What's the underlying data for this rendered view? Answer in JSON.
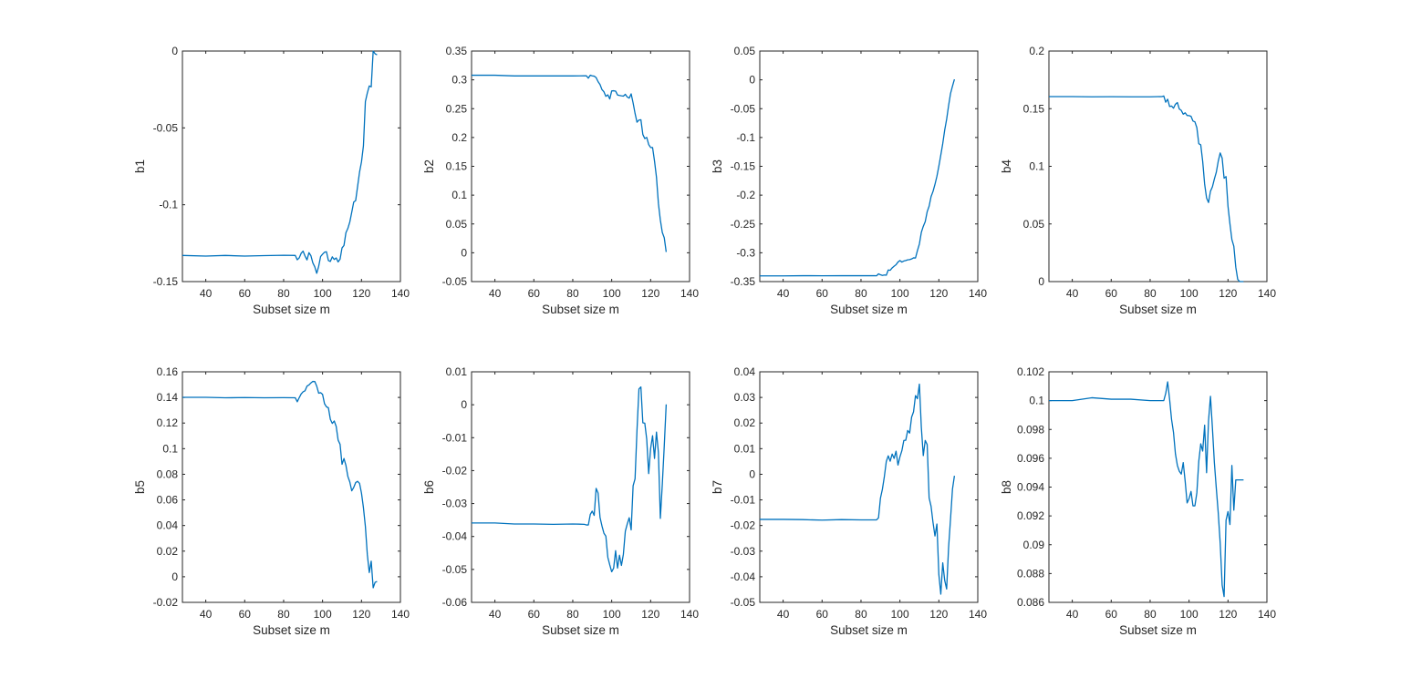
{
  "chart_data": [
    {
      "type": "line",
      "xlabel": "Subset size m",
      "ylabel": "b1",
      "xlim": [
        28,
        140
      ],
      "ylim": [
        -0.15,
        0
      ],
      "xticks": [
        "40",
        "60",
        "80",
        "100",
        "120",
        "140"
      ],
      "yticks": [
        "-0.15",
        "-0.1",
        "-0.05",
        "0"
      ],
      "series": [
        {
          "color": "#0072BD",
          "x": [
            28,
            40,
            50,
            60,
            70,
            80,
            86,
            87,
            88,
            89,
            90,
            91,
            92,
            93,
            94,
            95,
            96,
            97,
            98,
            99,
            100,
            101,
            102,
            103,
            104,
            105,
            106,
            107,
            108,
            109,
            110,
            111,
            112,
            113,
            114,
            115,
            116,
            117,
            118,
            119,
            120,
            121,
            122,
            123,
            124,
            125,
            126,
            127,
            128
          ],
          "y": [
            -0.133,
            -0.1334,
            -0.133,
            -0.1334,
            -0.1331,
            -0.1329,
            -0.133,
            -0.1358,
            -0.1346,
            -0.1316,
            -0.1302,
            -0.1334,
            -0.1359,
            -0.1312,
            -0.1331,
            -0.1378,
            -0.1404,
            -0.1446,
            -0.1401,
            -0.1337,
            -0.1322,
            -0.1309,
            -0.1306,
            -0.1363,
            -0.1369,
            -0.1339,
            -0.1356,
            -0.1346,
            -0.1372,
            -0.1354,
            -0.1281,
            -0.1265,
            -0.1182,
            -0.1154,
            -0.1112,
            -0.1049,
            -0.0983,
            -0.0973,
            -0.0881,
            -0.0788,
            -0.0721,
            -0.0616,
            -0.0329,
            -0.0273,
            -0.0227,
            -0.0233,
            -0.0001,
            -0.0018,
            -0.0025
          ]
        }
      ]
    },
    {
      "type": "line",
      "xlabel": "Subset size m",
      "ylabel": "b2",
      "xlim": [
        28,
        140
      ],
      "ylim": [
        -0.05,
        0.35
      ],
      "xticks": [
        "40",
        "60",
        "80",
        "100",
        "120",
        "140"
      ],
      "yticks": [
        "-0.05",
        "0",
        "0.05",
        "0.1",
        "0.15",
        "0.2",
        "0.25",
        "0.3",
        "0.35"
      ],
      "series": [
        {
          "color": "#0072BD",
          "x": [
            28,
            40,
            50,
            60,
            70,
            80,
            86,
            87,
            88,
            89,
            90,
            91,
            92,
            93,
            94,
            95,
            96,
            97,
            98,
            99,
            100,
            101,
            102,
            103,
            104,
            105,
            106,
            107,
            108,
            109,
            110,
            111,
            112,
            113,
            114,
            115,
            116,
            117,
            118,
            119,
            120,
            121,
            122,
            123,
            124,
            125,
            126,
            127,
            128
          ],
          "y": [
            0.308,
            0.308,
            0.3068,
            0.3068,
            0.3068,
            0.3068,
            0.307,
            0.307,
            0.3029,
            0.3081,
            0.3069,
            0.3064,
            0.3039,
            0.2968,
            0.2919,
            0.2831,
            0.2793,
            0.2714,
            0.2741,
            0.2669,
            0.2807,
            0.2811,
            0.2805,
            0.2738,
            0.2729,
            0.2723,
            0.2718,
            0.2749,
            0.2702,
            0.2683,
            0.2757,
            0.2599,
            0.2418,
            0.2265,
            0.2303,
            0.2308,
            0.2052,
            0.1981,
            0.2002,
            0.1878,
            0.1827,
            0.1825,
            0.1591,
            0.1311,
            0.0854,
            0.0567,
            0.0352,
            0.0261,
            0.0014
          ]
        }
      ]
    },
    {
      "type": "line",
      "xlabel": "Subset size m",
      "ylabel": "b3",
      "xlim": [
        28,
        140
      ],
      "ylim": [
        -0.35,
        0.05
      ],
      "xticks": [
        "40",
        "60",
        "80",
        "100",
        "120",
        "140"
      ],
      "yticks": [
        "-0.35",
        "-0.3",
        "-0.25",
        "-0.2",
        "-0.15",
        "-0.1",
        "-0.05",
        "0",
        "0.05"
      ],
      "series": [
        {
          "color": "#0072BD",
          "x": [
            28,
            40,
            50,
            60,
            70,
            80,
            86,
            87,
            88,
            89,
            90,
            91,
            92,
            93,
            94,
            95,
            96,
            97,
            98,
            99,
            100,
            101,
            102,
            103,
            104,
            105,
            106,
            107,
            108,
            109,
            110,
            111,
            112,
            113,
            114,
            115,
            116,
            117,
            118,
            119,
            120,
            121,
            122,
            123,
            124,
            125,
            126,
            127,
            128
          ],
          "y": [
            -0.3401,
            -0.3401,
            -0.3398,
            -0.3399,
            -0.3398,
            -0.3398,
            -0.3397,
            -0.3398,
            -0.3399,
            -0.3366,
            -0.3382,
            -0.3393,
            -0.3386,
            -0.3389,
            -0.3299,
            -0.3304,
            -0.3262,
            -0.3233,
            -0.3208,
            -0.3161,
            -0.3135,
            -0.3162,
            -0.3143,
            -0.3134,
            -0.3122,
            -0.3119,
            -0.3107,
            -0.3088,
            -0.3091,
            -0.2962,
            -0.2848,
            -0.2646,
            -0.2541,
            -0.2461,
            -0.2288,
            -0.2192,
            -0.2025,
            -0.1936,
            -0.1814,
            -0.1674,
            -0.1498,
            -0.1305,
            -0.1106,
            -0.0872,
            -0.0684,
            -0.0448,
            -0.0237,
            -0.011,
            0.0009
          ]
        }
      ]
    },
    {
      "type": "line",
      "xlabel": "Subset size m",
      "ylabel": "b4",
      "xlim": [
        28,
        140
      ],
      "ylim": [
        0,
        0.2
      ],
      "xticks": [
        "40",
        "60",
        "80",
        "100",
        "120",
        "140"
      ],
      "yticks": [
        "0",
        "0.05",
        "0.1",
        "0.15",
        "0.2"
      ],
      "series": [
        {
          "color": "#0072BD",
          "x": [
            28,
            40,
            50,
            60,
            70,
            80,
            86,
            87,
            88,
            89,
            90,
            91,
            92,
            93,
            94,
            95,
            96,
            97,
            98,
            99,
            100,
            101,
            102,
            103,
            104,
            105,
            106,
            107,
            108,
            109,
            110,
            111,
            112,
            113,
            114,
            115,
            116,
            117,
            118,
            119,
            120,
            121,
            122,
            123,
            124,
            125,
            126,
            127,
            128
          ],
          "y": [
            0.1605,
            0.1605,
            0.1603,
            0.1604,
            0.1603,
            0.1603,
            0.1605,
            0.161,
            0.1556,
            0.1582,
            0.1519,
            0.1523,
            0.1504,
            0.1539,
            0.1553,
            0.1497,
            0.1485,
            0.1452,
            0.1464,
            0.1441,
            0.144,
            0.1434,
            0.1393,
            0.1386,
            0.1335,
            0.1196,
            0.1186,
            0.1043,
            0.0846,
            0.0725,
            0.0686,
            0.0784,
            0.0822,
            0.089,
            0.0949,
            0.1045,
            0.1116,
            0.1071,
            0.0897,
            0.0911,
            0.0654,
            0.0501,
            0.0364,
            0.0307,
            0.0125,
            0.0019,
            0.0,
            0.0,
            0.0
          ]
        }
      ]
    },
    {
      "type": "line",
      "xlabel": "Subset size m",
      "ylabel": "b5",
      "xlim": [
        28,
        140
      ],
      "ylim": [
        -0.02,
        0.16
      ],
      "xticks": [
        "40",
        "60",
        "80",
        "100",
        "120",
        "140"
      ],
      "yticks": [
        "-0.02",
        "0",
        "0.02",
        "0.04",
        "0.06",
        "0.08",
        "0.1",
        "0.12",
        "0.14",
        "0.16"
      ],
      "series": [
        {
          "color": "#0072BD",
          "x": [
            28,
            40,
            50,
            60,
            70,
            80,
            86,
            87,
            88,
            89,
            90,
            91,
            92,
            93,
            94,
            95,
            96,
            97,
            98,
            99,
            100,
            101,
            102,
            103,
            104,
            105,
            106,
            107,
            108,
            109,
            110,
            111,
            112,
            113,
            114,
            115,
            116,
            117,
            118,
            119,
            120,
            121,
            122,
            123,
            124,
            125,
            126,
            127,
            128
          ],
          "y": [
            0.1401,
            0.1401,
            0.1397,
            0.1399,
            0.1397,
            0.1398,
            0.1397,
            0.1366,
            0.1398,
            0.1427,
            0.1444,
            0.1452,
            0.1488,
            0.1497,
            0.1513,
            0.1525,
            0.1524,
            0.1488,
            0.1433,
            0.1437,
            0.1424,
            0.1351,
            0.1327,
            0.1319,
            0.1229,
            0.1197,
            0.1216,
            0.1174,
            0.1067,
            0.1034,
            0.0878,
            0.0923,
            0.087,
            0.0783,
            0.074,
            0.0671,
            0.0697,
            0.0735,
            0.0745,
            0.0729,
            0.0653,
            0.0539,
            0.0393,
            0.0173,
            0.0033,
            0.0122,
            -0.0086,
            -0.0043,
            -0.0037
          ]
        }
      ]
    },
    {
      "type": "line",
      "xlabel": "Subset size m",
      "ylabel": "b6",
      "xlim": [
        28,
        140
      ],
      "ylim": [
        -0.06,
        0.01
      ],
      "xticks": [
        "40",
        "60",
        "80",
        "100",
        "120",
        "140"
      ],
      "yticks": [
        "-0.06",
        "-0.05",
        "-0.04",
        "-0.03",
        "-0.02",
        "-0.01",
        "0",
        "0.01"
      ],
      "series": [
        {
          "color": "#0072BD",
          "x": [
            28,
            40,
            50,
            60,
            70,
            80,
            86,
            87,
            88,
            89,
            90,
            91,
            92,
            93,
            94,
            95,
            96,
            97,
            98,
            99,
            100,
            101,
            102,
            103,
            104,
            105,
            106,
            107,
            108,
            109,
            110,
            111,
            112,
            113,
            114,
            115,
            116,
            117,
            118,
            119,
            120,
            121,
            122,
            123,
            124,
            125,
            126,
            127,
            128
          ],
          "y": [
            -0.0359,
            -0.0359,
            -0.0362,
            -0.0362,
            -0.0363,
            -0.0362,
            -0.0363,
            -0.0365,
            -0.0365,
            -0.0333,
            -0.0323,
            -0.0336,
            -0.0254,
            -0.0268,
            -0.0342,
            -0.0368,
            -0.039,
            -0.0399,
            -0.0463,
            -0.0486,
            -0.0507,
            -0.0496,
            -0.0443,
            -0.0496,
            -0.0457,
            -0.0488,
            -0.0454,
            -0.0384,
            -0.0362,
            -0.0343,
            -0.038,
            -0.0246,
            -0.0225,
            -0.0077,
            0.0048,
            0.0054,
            -0.0055,
            -0.0056,
            -0.0105,
            -0.0209,
            -0.0133,
            -0.0094,
            -0.0163,
            -0.0083,
            -0.0145,
            -0.0345,
            -0.0241,
            -0.0125,
            0.0001
          ]
        }
      ]
    },
    {
      "type": "line",
      "xlabel": "Subset size m",
      "ylabel": "b7",
      "xlim": [
        28,
        140
      ],
      "ylim": [
        -0.05,
        0.04
      ],
      "xticks": [
        "40",
        "60",
        "80",
        "100",
        "120",
        "140"
      ],
      "yticks": [
        "-0.05",
        "-0.04",
        "-0.03",
        "-0.02",
        "-0.01",
        "0",
        "0.01",
        "0.02",
        "0.03",
        "0.04"
      ],
      "series": [
        {
          "color": "#0072BD",
          "x": [
            28,
            40,
            50,
            60,
            70,
            80,
            86,
            87,
            88,
            89,
            90,
            91,
            92,
            93,
            94,
            95,
            96,
            97,
            98,
            99,
            100,
            101,
            102,
            103,
            104,
            105,
            106,
            107,
            108,
            109,
            110,
            111,
            112,
            113,
            114,
            115,
            116,
            117,
            118,
            119,
            120,
            121,
            122,
            123,
            124,
            125,
            126,
            127,
            128
          ],
          "y": [
            -0.0176,
            -0.0176,
            -0.0177,
            -0.0179,
            -0.0177,
            -0.0178,
            -0.0178,
            -0.0178,
            -0.0178,
            -0.017,
            -0.0093,
            -0.0058,
            -0.0009,
            0.005,
            0.0072,
            0.0051,
            0.0079,
            0.0062,
            0.009,
            0.0036,
            0.0068,
            0.0092,
            0.0132,
            0.0133,
            0.0171,
            0.0161,
            0.0223,
            0.0244,
            0.0307,
            0.0295,
            0.0352,
            0.0183,
            0.0073,
            0.0132,
            0.0116,
            -0.0092,
            -0.0125,
            -0.0188,
            -0.0241,
            -0.0194,
            -0.0391,
            -0.0468,
            -0.0346,
            -0.0414,
            -0.0448,
            -0.0286,
            -0.0174,
            -0.0058,
            -0.0006
          ]
        }
      ]
    },
    {
      "type": "line",
      "xlabel": "Subset size m",
      "ylabel": "b8",
      "xlim": [
        28,
        140
      ],
      "ylim": [
        0.086,
        0.102
      ],
      "xticks": [
        "40",
        "60",
        "80",
        "100",
        "120",
        "140"
      ],
      "yticks": [
        "0.086",
        "0.088",
        "0.09",
        "0.092",
        "0.094",
        "0.096",
        "0.098",
        "0.1",
        "0.102"
      ],
      "series": [
        {
          "color": "#0072BD",
          "x": [
            28,
            40,
            50,
            60,
            70,
            80,
            86,
            87,
            88,
            89,
            90,
            91,
            92,
            93,
            94,
            95,
            96,
            97,
            98,
            99,
            100,
            101,
            102,
            103,
            104,
            105,
            106,
            107,
            108,
            109,
            110,
            111,
            112,
            113,
            114,
            115,
            116,
            117,
            118,
            119,
            120,
            121,
            122,
            123,
            124,
            125,
            126,
            127,
            128
          ],
          "y": [
            0.1,
            0.1,
            0.1002,
            0.1001,
            0.1001,
            0.1,
            0.1,
            0.1,
            0.1005,
            0.1013,
            0.1001,
            0.0987,
            0.0978,
            0.0963,
            0.0955,
            0.0951,
            0.0949,
            0.0957,
            0.0944,
            0.0929,
            0.0932,
            0.0937,
            0.0927,
            0.0927,
            0.0936,
            0.0958,
            0.097,
            0.0965,
            0.0983,
            0.095,
            0.0986,
            0.1003,
            0.0981,
            0.0957,
            0.0939,
            0.0922,
            0.0901,
            0.0872,
            0.0864,
            0.0917,
            0.0923,
            0.0914,
            0.0955,
            0.0924,
            0.0945,
            0.0945,
            0.0945,
            0.0945,
            0.0945
          ]
        }
      ]
    }
  ]
}
